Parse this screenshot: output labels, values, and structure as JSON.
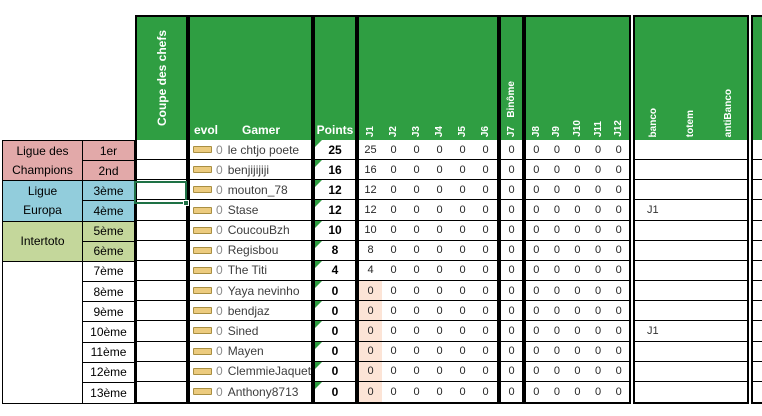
{
  "header": {
    "coupe_label": "Coupe des chefs",
    "evol_label": "evol",
    "gamer_label": "Gamer",
    "points_label": "Points",
    "binome_label": "Binôme",
    "j_left_labels": [
      "J1",
      "J2",
      "J3",
      "J4",
      "J5",
      "J6"
    ],
    "j7_label": "J7",
    "j_right_labels": [
      "J8",
      "J9",
      "J10",
      "J11",
      "J12"
    ],
    "banco_labels": [
      "banco",
      "totem",
      "antiBanco"
    ]
  },
  "league_groups": [
    {
      "label": "Ligue des Champions",
      "color": "#E2A9A9",
      "rows": 2
    },
    {
      "label": "Ligue Europa",
      "color": "#92CDDC",
      "rows": 2
    },
    {
      "label": "Intertoto",
      "color": "#C4D79B",
      "rows": 2
    }
  ],
  "rows": [
    {
      "rank": "1er",
      "rank_color": "#E2A9A9",
      "evol": "0",
      "gamer": "le chtjo poete",
      "points": "25",
      "j": [
        25,
        0,
        0,
        0,
        0,
        0,
        0,
        0,
        0,
        0,
        0,
        0
      ],
      "j1_highlight": false,
      "banco": ""
    },
    {
      "rank": "2nd",
      "rank_color": "#E2A9A9",
      "evol": "0",
      "gamer": "benjijijiji",
      "points": "16",
      "j": [
        16,
        0,
        0,
        0,
        0,
        0,
        0,
        0,
        0,
        0,
        0,
        0
      ],
      "j1_highlight": false,
      "banco": ""
    },
    {
      "rank": "3ème",
      "rank_color": "#92CDDC",
      "evol": "0",
      "gamer": "mouton_78",
      "points": "12",
      "j": [
        12,
        0,
        0,
        0,
        0,
        0,
        0,
        0,
        0,
        0,
        0,
        0
      ],
      "j1_highlight": false,
      "banco": ""
    },
    {
      "rank": "4ème",
      "rank_color": "#92CDDC",
      "evol": "0",
      "gamer": "Stase",
      "points": "12",
      "j": [
        12,
        0,
        0,
        0,
        0,
        0,
        0,
        0,
        0,
        0,
        0,
        0
      ],
      "j1_highlight": false,
      "banco": "J1"
    },
    {
      "rank": "5ème",
      "rank_color": "#C4D79B",
      "evol": "0",
      "gamer": "CoucouBzh",
      "points": "10",
      "j": [
        10,
        0,
        0,
        0,
        0,
        0,
        0,
        0,
        0,
        0,
        0,
        0
      ],
      "j1_highlight": false,
      "banco": ""
    },
    {
      "rank": "6ème",
      "rank_color": "#C4D79B",
      "evol": "0",
      "gamer": "Regisbou",
      "points": "8",
      "j": [
        8,
        0,
        0,
        0,
        0,
        0,
        0,
        0,
        0,
        0,
        0,
        0
      ],
      "j1_highlight": false,
      "banco": ""
    },
    {
      "rank": "7ème",
      "rank_color": "#FFFFFF",
      "evol": "0",
      "gamer": "The Titi",
      "points": "4",
      "j": [
        4,
        0,
        0,
        0,
        0,
        0,
        0,
        0,
        0,
        0,
        0,
        0
      ],
      "j1_highlight": false,
      "banco": ""
    },
    {
      "rank": "8ème",
      "rank_color": "#FFFFFF",
      "evol": "0",
      "gamer": "Yaya nevinho",
      "points": "0",
      "j": [
        0,
        0,
        0,
        0,
        0,
        0,
        0,
        0,
        0,
        0,
        0,
        0
      ],
      "j1_highlight": true,
      "banco": ""
    },
    {
      "rank": "9ème",
      "rank_color": "#FFFFFF",
      "evol": "0",
      "gamer": "bendjaz",
      "points": "0",
      "j": [
        0,
        0,
        0,
        0,
        0,
        0,
        0,
        0,
        0,
        0,
        0,
        0
      ],
      "j1_highlight": true,
      "banco": ""
    },
    {
      "rank": "10ème",
      "rank_color": "#FFFFFF",
      "evol": "0",
      "gamer": "Sined",
      "points": "0",
      "j": [
        0,
        0,
        0,
        0,
        0,
        0,
        0,
        0,
        0,
        0,
        0,
        0
      ],
      "j1_highlight": true,
      "banco": "J1"
    },
    {
      "rank": "11ème",
      "rank_color": "#FFFFFF",
      "evol": "0",
      "gamer": "Mayen",
      "points": "0",
      "j": [
        0,
        0,
        0,
        0,
        0,
        0,
        0,
        0,
        0,
        0,
        0,
        0
      ],
      "j1_highlight": true,
      "banco": ""
    },
    {
      "rank": "12ème",
      "rank_color": "#FFFFFF",
      "evol": "0",
      "gamer": "ClemmieJaquet",
      "points": "0",
      "j": [
        0,
        0,
        0,
        0,
        0,
        0,
        0,
        0,
        0,
        0,
        0,
        0
      ],
      "j1_highlight": true,
      "banco": ""
    },
    {
      "rank": "13ème",
      "rank_color": "#FFFFFF",
      "evol": "0",
      "gamer": "Anthony8713",
      "points": "0",
      "j": [
        0,
        0,
        0,
        0,
        0,
        0,
        0,
        0,
        0,
        0,
        0,
        0
      ],
      "j1_highlight": true,
      "banco": ""
    }
  ],
  "colors": {
    "header_green": "#2F9E42",
    "pink": "#E2A9A9",
    "blue": "#92CDDC",
    "light_green": "#C4D79B",
    "peach": "#FCE4D6",
    "selection_green": "#1E7145",
    "triangle_green": "#2F9E42",
    "evol_icon_fill": "#ECCB7E",
    "evol_icon_border": "#A98F42"
  }
}
